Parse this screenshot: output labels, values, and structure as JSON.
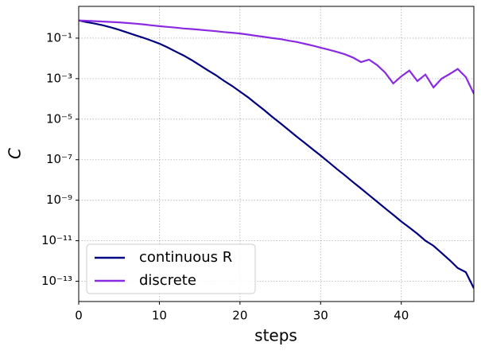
{
  "chart_data": {
    "type": "line",
    "xlabel": "steps",
    "ylabel": "C",
    "log_y": true,
    "grid": true,
    "legend": "lower left",
    "x": [
      0,
      1,
      2,
      3,
      4,
      5,
      6,
      7,
      8,
      9,
      10,
      11,
      12,
      13,
      14,
      15,
      16,
      17,
      18,
      19,
      20,
      21,
      22,
      23,
      24,
      25,
      26,
      27,
      28,
      29,
      30,
      31,
      32,
      33,
      34,
      35,
      36,
      37,
      38,
      39,
      40,
      41,
      42,
      43,
      44,
      45,
      46,
      47,
      48,
      49
    ],
    "series": [
      {
        "name": "continuous R",
        "color": "#000080",
        "values": [
          0.75,
          0.62,
          0.52,
          0.43,
          0.34,
          0.26,
          0.19,
          0.14,
          0.105,
          0.076,
          0.054,
          0.035,
          0.022,
          0.014,
          0.0083,
          0.0047,
          0.0026,
          0.0015,
          0.00079,
          0.00044,
          0.00023,
          0.00012,
          5.8e-05,
          2.8e-05,
          1.3e-05,
          6.3e-06,
          3e-06,
          1.4e-06,
          6.9e-07,
          3.3e-07,
          1.6e-07,
          7.6e-08,
          3.5e-08,
          1.7e-08,
          7.9e-09,
          3.8e-09,
          1.8e-09,
          8.5e-10,
          4e-10,
          1.9e-10,
          8.9e-11,
          4.5e-11,
          2.2e-11,
          1e-11,
          5.6e-12,
          2.5e-12,
          1.1e-12,
          4.5e-13,
          2.8e-13,
          4.5e-14
        ]
      },
      {
        "name": "discrete",
        "color": "#8a2be2",
        "values": [
          0.75,
          0.72,
          0.69,
          0.66,
          0.63,
          0.6,
          0.56,
          0.52,
          0.48,
          0.43,
          0.39,
          0.36,
          0.33,
          0.3,
          0.28,
          0.26,
          0.24,
          0.22,
          0.2,
          0.185,
          0.17,
          0.15,
          0.13,
          0.115,
          0.1,
          0.09,
          0.075,
          0.065,
          0.053,
          0.043,
          0.034,
          0.027,
          0.021,
          0.016,
          0.011,
          0.0066,
          0.0087,
          0.0047,
          0.002,
          0.00058,
          0.0013,
          0.0025,
          0.00076,
          0.0016,
          0.00037,
          0.001,
          0.0017,
          0.003,
          0.0012,
          0.00018
        ]
      }
    ],
    "xlim": [
      0,
      49
    ],
    "xticks": [
      0,
      10,
      20,
      30,
      40
    ],
    "ylim": [
      1e-14,
      3.7
    ],
    "yticks": [
      {
        "value": 1e-13,
        "label": "10⁻¹³"
      },
      {
        "value": 1e-11,
        "label": "10⁻¹¹"
      },
      {
        "value": 1e-09,
        "label": "10⁻⁹"
      },
      {
        "value": 1e-07,
        "label": "10⁻⁷"
      },
      {
        "value": 1e-05,
        "label": "10⁻⁵"
      },
      {
        "value": 0.001,
        "label": "10⁻³"
      },
      {
        "value": 0.1,
        "label": "10⁻¹"
      }
    ]
  }
}
